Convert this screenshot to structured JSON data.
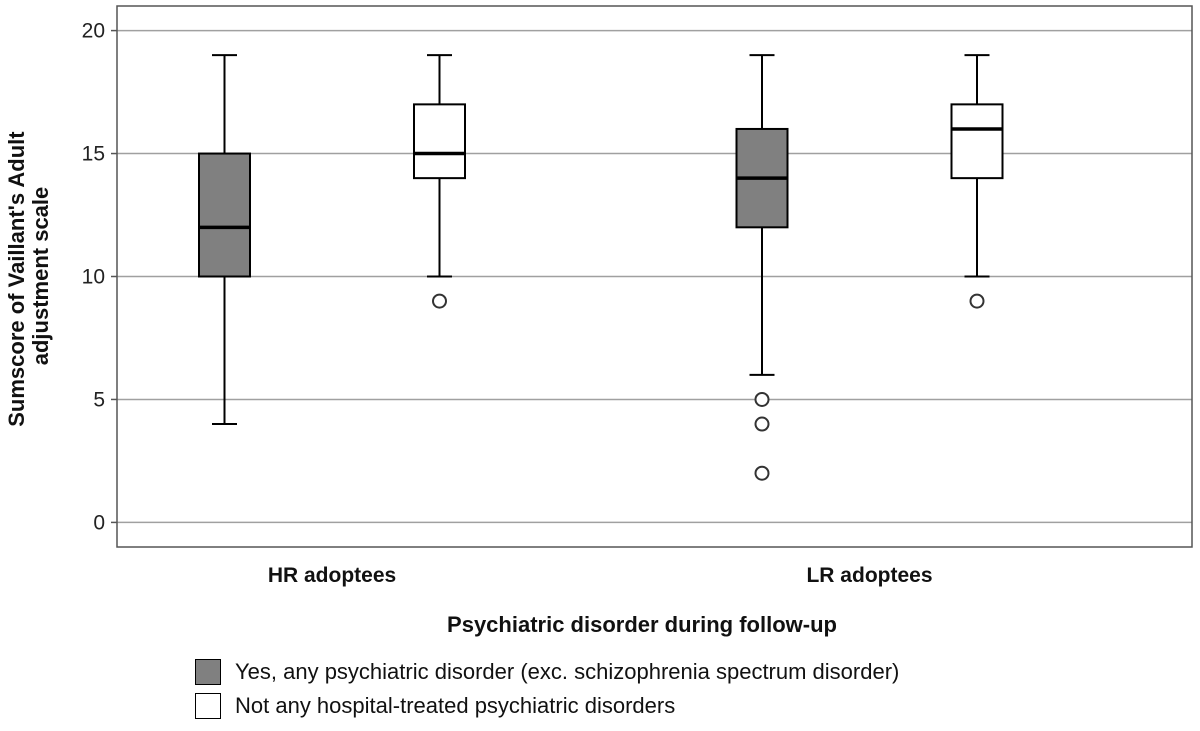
{
  "chart_data": {
    "type": "boxplot",
    "xlabel": "Psychiatric disorder during follow-up",
    "ylabel_lines": [
      "Sumscore of Vaillant's Adult",
      "adjustment scale"
    ],
    "ylim": [
      -1,
      21
    ],
    "yticks": [
      0,
      5,
      10,
      15,
      20
    ],
    "grid": true,
    "legend_placement": "bottom",
    "categories": [
      "HR adoptees",
      "LR adoptees"
    ],
    "series": [
      {
        "name": "Yes, any psychiatric disorder (exc. schizophrenia spectrum disorder)",
        "color": "#808080",
        "boxes": [
          {
            "min": 4,
            "q1": 10,
            "median": 12,
            "q3": 15,
            "max": 19,
            "outliers": []
          },
          {
            "min": 6,
            "q1": 12,
            "median": 14,
            "q3": 16,
            "max": 19,
            "outliers": [
              5,
              4,
              2
            ]
          }
        ]
      },
      {
        "name": "Not any hospital-treated psychiatric disorders",
        "color": "#ffffff",
        "boxes": [
          {
            "min": 10,
            "q1": 14,
            "median": 15,
            "q3": 17,
            "max": 19,
            "outliers": [
              9
            ]
          },
          {
            "min": 10,
            "q1": 14,
            "median": 16,
            "q3": 17,
            "max": 19,
            "outliers": [
              9
            ]
          }
        ]
      }
    ]
  }
}
